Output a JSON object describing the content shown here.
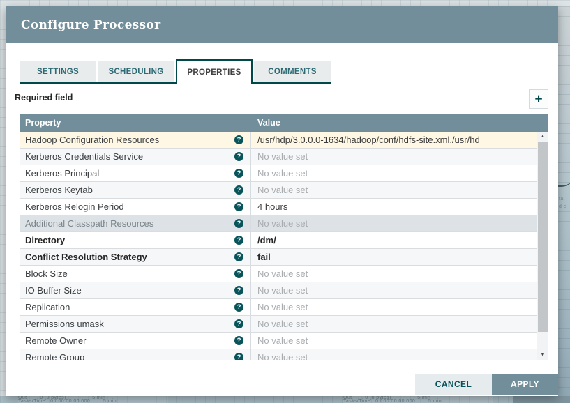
{
  "dialog": {
    "title": "Configure Processor"
  },
  "tabs": [
    {
      "label": "SETTINGS",
      "active": false
    },
    {
      "label": "SCHEDULING",
      "active": false
    },
    {
      "label": "PROPERTIES",
      "active": true
    },
    {
      "label": "COMMENTS",
      "active": false
    }
  ],
  "properties_panel": {
    "hint": "Required field",
    "add_icon": "+"
  },
  "table": {
    "columns": {
      "property": "Property",
      "value": "Value"
    },
    "help_icon": "?",
    "rows": [
      {
        "property": "Hadoop Configuration Resources",
        "value": "/usr/hdp/3.0.0.0-1634/hadoop/conf/hdfs-site.xml,/usr/hd…",
        "state": "selected",
        "required": false,
        "empty": false
      },
      {
        "property": "Kerberos Credentials Service",
        "value": "No value set",
        "state": "",
        "required": false,
        "empty": true
      },
      {
        "property": "Kerberos Principal",
        "value": "No value set",
        "state": "",
        "required": false,
        "empty": true
      },
      {
        "property": "Kerberos Keytab",
        "value": "No value set",
        "state": "",
        "required": false,
        "empty": true
      },
      {
        "property": "Kerberos Relogin Period",
        "value": "4 hours",
        "state": "",
        "required": false,
        "empty": false
      },
      {
        "property": "Additional Classpath Resources",
        "value": "No value set",
        "state": "hover",
        "required": false,
        "empty": true
      },
      {
        "property": "Directory",
        "value": "/dm/",
        "state": "",
        "required": true,
        "empty": false
      },
      {
        "property": "Conflict Resolution Strategy",
        "value": "fail",
        "state": "",
        "required": true,
        "empty": false
      },
      {
        "property": "Block Size",
        "value": "No value set",
        "state": "",
        "required": false,
        "empty": true
      },
      {
        "property": "IO Buffer Size",
        "value": "No value set",
        "state": "",
        "required": false,
        "empty": true
      },
      {
        "property": "Replication",
        "value": "No value set",
        "state": "",
        "required": false,
        "empty": true
      },
      {
        "property": "Permissions umask",
        "value": "No value set",
        "state": "",
        "required": false,
        "empty": true
      },
      {
        "property": "Remote Owner",
        "value": "No value set",
        "state": "",
        "required": false,
        "empty": true
      },
      {
        "property": "Remote Group",
        "value": "No value set",
        "state": "",
        "required": false,
        "empty": true
      }
    ]
  },
  "scrollbar": {
    "up_icon": "▲",
    "down_icon": "▼"
  },
  "footer": {
    "cancel": "CANCEL",
    "apply": "APPLY"
  },
  "canvas_background": {
    "fragments": [
      {
        "lines": [
          "Out        0 (0 bytes)                5 min",
          "Tasks/Time   0 / 00:00:00.000        5 min"
        ]
      },
      {
        "lines": [
          "Out        0 (0 bytes)                5 min",
          "Tasks/Time   0 / 00:00:00.000        5 min"
        ]
      },
      {
        "lines": [
          "fa",
          "d c"
        ]
      }
    ]
  },
  "colors": {
    "header_slate": "#728e9b",
    "accent_teal": "#004849",
    "selected_row": "#fdf7e3",
    "hover_row": "#dce2e6",
    "canvas": "#dee4e6"
  }
}
